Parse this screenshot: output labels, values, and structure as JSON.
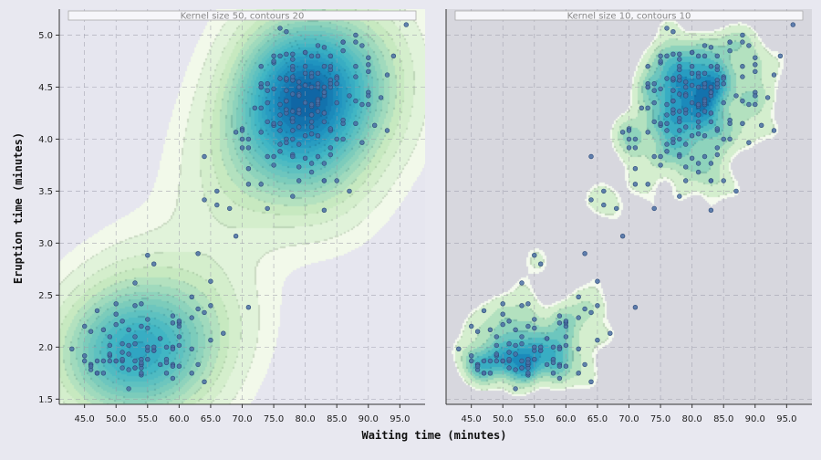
{
  "chart_data": [
    {
      "type": "scatter",
      "subtype": "kde-filled-contour",
      "title": "Kernel size 50, contours 20",
      "xlabel": "Waiting time (minutes)",
      "ylabel": "Eruption time (minutes)",
      "xlim": [
        41,
        99
      ],
      "ylim": [
        1.45,
        5.25
      ],
      "xticks": [
        "45.0",
        "50.0",
        "55.0",
        "60.0",
        "65.0",
        "70.0",
        "75.0",
        "80.0",
        "85.0",
        "90.0",
        "95.0"
      ],
      "yticks": [
        "1.5",
        "2.0",
        "2.5",
        "3.0",
        "3.5",
        "4.0",
        "4.5",
        "5.0"
      ],
      "grid": true,
      "background": "#e6e6ef",
      "contour_levels": 20,
      "kernel_size": 50,
      "colormap": [
        "#f2f9ea",
        "#c7e9c0",
        "#7fcdbb",
        "#41b6c4",
        "#1d91c0",
        "#0c5a9e"
      ]
    },
    {
      "type": "scatter",
      "subtype": "kde-filled-contour",
      "title": "Kernel size 10, contours 10",
      "xlabel": "Waiting time (minutes)",
      "ylabel": "",
      "xlim": [
        41,
        99
      ],
      "ylim": [
        1.45,
        5.25
      ],
      "xticks": [
        "45.0",
        "50.0",
        "55.0",
        "60.0",
        "65.0",
        "70.0",
        "75.0",
        "80.0",
        "85.0",
        "90.0",
        "95.0"
      ],
      "yticks": [],
      "grid": true,
      "background": "#d7d7de",
      "contour_levels": 10,
      "kernel_size": 10,
      "colormap": [
        "#f4faee",
        "#c7e9c0",
        "#7fcdbb",
        "#41b6c4",
        "#1d91c0",
        "#0c5a9e"
      ]
    }
  ],
  "points": [
    [
      79,
      3.6
    ],
    [
      54,
      1.8
    ],
    [
      74,
      3.333
    ],
    [
      62,
      2.283
    ],
    [
      85,
      4.533
    ],
    [
      55,
      2.883
    ],
    [
      88,
      4.7
    ],
    [
      85,
      3.6
    ],
    [
      51,
      1.95
    ],
    [
      85,
      4.35
    ],
    [
      54,
      1.833
    ],
    [
      84,
      3.917
    ],
    [
      78,
      4.2
    ],
    [
      47,
      1.75
    ],
    [
      83,
      4.7
    ],
    [
      52,
      2.167
    ],
    [
      62,
      1.75
    ],
    [
      84,
      4.8
    ],
    [
      52,
      1.6
    ],
    [
      79,
      4.25
    ],
    [
      51,
      1.8
    ],
    [
      47,
      1.75
    ],
    [
      78,
      3.45
    ],
    [
      69,
      3.067
    ],
    [
      74,
      4.533
    ],
    [
      83,
      3.6
    ],
    [
      55,
      1.967
    ],
    [
      76,
      4.083
    ],
    [
      78,
      3.85
    ],
    [
      79,
      4.433
    ],
    [
      73,
      4.3
    ],
    [
      77,
      4.467
    ],
    [
      66,
      3.367
    ],
    [
      80,
      4.033
    ],
    [
      74,
      3.833
    ],
    [
      52,
      2.017
    ],
    [
      48,
      1.867
    ],
    [
      80,
      4.833
    ],
    [
      59,
      1.833
    ],
    [
      90,
      4.783
    ],
    [
      80,
      4.35
    ],
    [
      58,
      1.883
    ],
    [
      84,
      4.567
    ],
    [
      58,
      1.75
    ],
    [
      73,
      4.533
    ],
    [
      83,
      3.317
    ],
    [
      64,
      3.833
    ],
    [
      53,
      2.1
    ],
    [
      82,
      4.633
    ],
    [
      59,
      2
    ],
    [
      75,
      4.8
    ],
    [
      90,
      4.716
    ],
    [
      54,
      1.833
    ],
    [
      80,
      4.833
    ],
    [
      54,
      1.733
    ],
    [
      83,
      4.883
    ],
    [
      71,
      3.717
    ],
    [
      64,
      1.667
    ],
    [
      77,
      4.567
    ],
    [
      81,
      4.317
    ],
    [
      59,
      2.233
    ],
    [
      84,
      4.5
    ],
    [
      48,
      1.75
    ],
    [
      82,
      4.8
    ],
    [
      60,
      1.817
    ],
    [
      92,
      4.4
    ],
    [
      78,
      4.167
    ],
    [
      78,
      4.7
    ],
    [
      65,
      2.067
    ],
    [
      73,
      4.7
    ],
    [
      82,
      4.033
    ],
    [
      56,
      1.967
    ],
    [
      79,
      4.5
    ],
    [
      71,
      4
    ],
    [
      62,
      1.983
    ],
    [
      76,
      5.067
    ],
    [
      60,
      2.017
    ],
    [
      78,
      4.567
    ],
    [
      76,
      3.883
    ],
    [
      83,
      3.6
    ],
    [
      75,
      4.133
    ],
    [
      82,
      4.333
    ],
    [
      70,
      4.1
    ],
    [
      65,
      2.633
    ],
    [
      73,
      4.067
    ],
    [
      88,
      4.933
    ],
    [
      76,
      3.95
    ],
    [
      80,
      4.517
    ],
    [
      48,
      2.167
    ],
    [
      86,
      4
    ],
    [
      60,
      2.2
    ],
    [
      90,
      4.333
    ],
    [
      50,
      1.867
    ],
    [
      78,
      4.817
    ],
    [
      63,
      1.833
    ],
    [
      72,
      4.3
    ],
    [
      84,
      4.667
    ],
    [
      75,
      3.75
    ],
    [
      51,
      1.867
    ],
    [
      82,
      4.9
    ],
    [
      62,
      2.483
    ],
    [
      88,
      4.367
    ],
    [
      49,
      2.1
    ],
    [
      83,
      4.5
    ],
    [
      81,
      4.05
    ],
    [
      47,
      1.867
    ],
    [
      84,
      4.7
    ],
    [
      52,
      1.783
    ],
    [
      86,
      4.85
    ],
    [
      81,
      3.683
    ],
    [
      75,
      4.733
    ],
    [
      59,
      2.3
    ],
    [
      89,
      4.9
    ],
    [
      79,
      4.417
    ],
    [
      59,
      1.7
    ],
    [
      81,
      4.633
    ],
    [
      50,
      2.317
    ],
    [
      85,
      4.6
    ],
    [
      59,
      1.817
    ],
    [
      87,
      4.417
    ],
    [
      53,
      2.617
    ],
    [
      69,
      4.067
    ],
    [
      77,
      4.25
    ],
    [
      56,
      1.967
    ],
    [
      88,
      4.6
    ],
    [
      81,
      3.767
    ],
    [
      45,
      1.917
    ],
    [
      82,
      4.5
    ],
    [
      55,
      2.267
    ],
    [
      90,
      4.65
    ],
    [
      45,
      1.867
    ],
    [
      83,
      4.167
    ],
    [
      56,
      2.8
    ],
    [
      89,
      4.333
    ],
    [
      46,
      1.833
    ],
    [
      82,
      4.383
    ],
    [
      51,
      1.883
    ],
    [
      86,
      4.933
    ],
    [
      53,
      2.033
    ],
    [
      79,
      3.733
    ],
    [
      81,
      4.233
    ],
    [
      60,
      2.233
    ],
    [
      82,
      4.533
    ],
    [
      77,
      4.817
    ],
    [
      76,
      4.333
    ],
    [
      59,
      1.983
    ],
    [
      80,
      4.633
    ],
    [
      49,
      2.017
    ],
    [
      96,
      5.1
    ],
    [
      53,
      1.8
    ],
    [
      77,
      5.033
    ],
    [
      77,
      4
    ],
    [
      65,
      2.4
    ],
    [
      81,
      4.6
    ],
    [
      71,
      3.567
    ],
    [
      70,
      4
    ],
    [
      81,
      4.5
    ],
    [
      93,
      4.083
    ],
    [
      53,
      1.8
    ],
    [
      89,
      3.967
    ],
    [
      45,
      2.2
    ],
    [
      86,
      4.15
    ],
    [
      58,
      2
    ],
    [
      78,
      3.833
    ],
    [
      66,
      3.5
    ],
    [
      76,
      4.583
    ],
    [
      63,
      2.367
    ],
    [
      88,
      5
    ],
    [
      52,
      1.933
    ],
    [
      93,
      4.617
    ],
    [
      49,
      1.917
    ],
    [
      57,
      2.083
    ],
    [
      77,
      4.583
    ],
    [
      68,
      3.333
    ],
    [
      81,
      4.167
    ],
    [
      81,
      4.333
    ],
    [
      73,
      4.5
    ],
    [
      50,
      2.417
    ],
    [
      85,
      4
    ],
    [
      74,
      4.167
    ],
    [
      55,
      1.883
    ],
    [
      77,
      4.583
    ],
    [
      83,
      4.25
    ],
    [
      83,
      3.767
    ],
    [
      51,
      2.033
    ],
    [
      78,
      4.433
    ],
    [
      84,
      4.083
    ],
    [
      46,
      1.833
    ],
    [
      83,
      4.417
    ],
    [
      55,
      2.183
    ],
    [
      81,
      4.8
    ],
    [
      57,
      1.833
    ],
    [
      76,
      4.8
    ],
    [
      84,
      4.1
    ],
    [
      77,
      3.966
    ],
    [
      81,
      4.233
    ],
    [
      87,
      3.5
    ],
    [
      77,
      4.366
    ],
    [
      51,
      2.25
    ],
    [
      78,
      4.667
    ],
    [
      60,
      2.1
    ],
    [
      82,
      4.35
    ],
    [
      91,
      4.133
    ],
    [
      53,
      1.867
    ],
    [
      78,
      4.6
    ],
    [
      46,
      1.783
    ],
    [
      77,
      4.367
    ],
    [
      84,
      3.85
    ],
    [
      49,
      1.933
    ],
    [
      83,
      4.5
    ],
    [
      71,
      2.383
    ],
    [
      80,
      4.7
    ],
    [
      49,
      1.867
    ],
    [
      75,
      3.833
    ],
    [
      64,
      3.417
    ],
    [
      76,
      4.233
    ],
    [
      53,
      2.4
    ],
    [
      94,
      4.8
    ],
    [
      55,
      2
    ],
    [
      76,
      4.15
    ],
    [
      50,
      1.867
    ],
    [
      82,
      4.267
    ],
    [
      54,
      1.75
    ],
    [
      75,
      4.483
    ],
    [
      78,
      4
    ],
    [
      79,
      4.117
    ],
    [
      78,
      4.083
    ],
    [
      78,
      4.267
    ],
    [
      70,
      3.917
    ],
    [
      79,
      4.55
    ],
    [
      70,
      4.083
    ],
    [
      54,
      2.417
    ],
    [
      86,
      4.183
    ],
    [
      50,
      2.217
    ],
    [
      90,
      4.45
    ],
    [
      54,
      1.883
    ],
    [
      54,
      1.85
    ],
    [
      77,
      4.283
    ],
    [
      79,
      3.95
    ],
    [
      64,
      2.333
    ],
    [
      75,
      4.15
    ],
    [
      47,
      2.35
    ],
    [
      86,
      4.933
    ],
    [
      63,
      2.9
    ],
    [
      85,
      4.583
    ],
    [
      82,
      3.833
    ],
    [
      57,
      2.083
    ],
    [
      82,
      4.367
    ],
    [
      67,
      2.133
    ],
    [
      74,
      4.35
    ],
    [
      54,
      2.2
    ],
    [
      83,
      4.45
    ],
    [
      73,
      3.567
    ],
    [
      73,
      4.5
    ],
    [
      88,
      4.15
    ],
    [
      80,
      3.817
    ],
    [
      71,
      3.917
    ],
    [
      83,
      4.45
    ],
    [
      56,
      2
    ],
    [
      79,
      4.283
    ],
    [
      78,
      4.767
    ],
    [
      84,
      4.533
    ],
    [
      58,
      1.85
    ],
    [
      83,
      4.25
    ],
    [
      43,
      1.983
    ],
    [
      60,
      2.25
    ],
    [
      75,
      4.75
    ],
    [
      81,
      4.117
    ],
    [
      46,
      2.15
    ],
    [
      90,
      4.417
    ],
    [
      46,
      1.817
    ],
    [
      74,
      4.467
    ]
  ]
}
